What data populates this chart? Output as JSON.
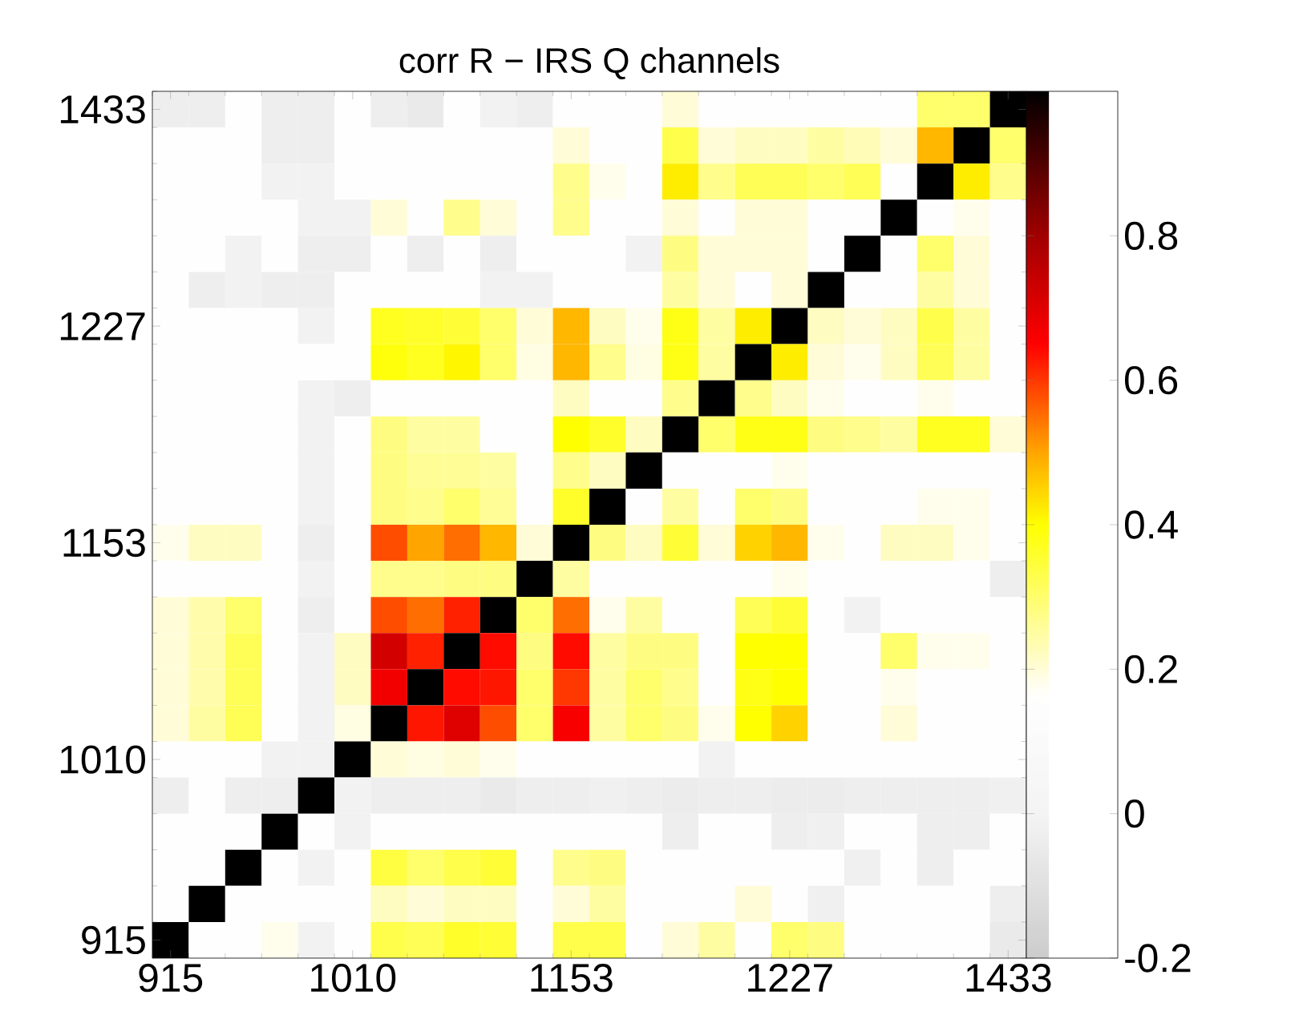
{
  "chart_data": {
    "type": "heatmap",
    "title": "corr R − IRS Q channels",
    "categories": [
      "915",
      null,
      null,
      null,
      null,
      "1010",
      null,
      null,
      null,
      null,
      null,
      "1153",
      null,
      null,
      null,
      null,
      null,
      "1227",
      null,
      null,
      null,
      null,
      null,
      "1433"
    ],
    "y_categories": [
      "1433",
      null,
      null,
      null,
      null,
      null,
      "1227",
      null,
      null,
      null,
      null,
      null,
      "1153",
      null,
      null,
      null,
      null,
      null,
      "1010",
      null,
      null,
      null,
      null,
      "915"
    ],
    "clim": [
      -0.2,
      1
    ],
    "cticks": [
      -0.2,
      0,
      0.2,
      0.4,
      0.6,
      0.8
    ],
    "cells": [
      [
        -0.03,
        -0.03,
        0.15,
        -0.03,
        -0.03,
        0.15,
        -0.03,
        -0.05,
        0.15,
        -0.01,
        -0.03,
        0.15,
        0.15,
        0.15,
        0.2,
        0.15,
        0.15,
        0.15,
        0.15,
        0.15,
        0.15,
        0.3,
        0.3,
        1
      ],
      [
        0.15,
        0.15,
        0.15,
        -0.03,
        -0.03,
        0.15,
        0.15,
        0.15,
        0.15,
        0.15,
        0.15,
        0.2,
        0.15,
        0.15,
        0.33,
        0.2,
        0.22,
        0.22,
        0.25,
        0.23,
        0.2,
        0.48,
        1,
        0.3
      ],
      [
        0.15,
        0.15,
        0.15,
        -0.01,
        -0.01,
        0.15,
        0.15,
        0.15,
        0.15,
        0.15,
        0.15,
        0.27,
        0.18,
        0.15,
        0.42,
        0.27,
        0.32,
        0.32,
        0.3,
        0.32,
        0.15,
        1,
        0.42,
        0.27
      ],
      [
        0.15,
        0.15,
        0.15,
        0.15,
        -0.01,
        -0.01,
        0.2,
        0.15,
        0.27,
        0.2,
        0.15,
        0.27,
        0.15,
        0.15,
        0.2,
        0.15,
        0.2,
        0.2,
        0.15,
        0.15,
        1,
        0.15,
        0.18,
        0.15
      ],
      [
        0.15,
        0.15,
        -0.01,
        0.15,
        -0.03,
        -0.03,
        0.15,
        -0.03,
        0.15,
        -0.03,
        0.15,
        0.15,
        0.15,
        -0.01,
        0.28,
        0.2,
        0.2,
        0.2,
        0.15,
        1,
        0.15,
        0.3,
        0.2,
        0.15
      ],
      [
        0.15,
        -0.03,
        -0.01,
        -0.03,
        -0.03,
        0.15,
        0.15,
        0.15,
        0.15,
        -0.01,
        -0.01,
        0.15,
        0.15,
        0.15,
        0.25,
        0.2,
        0.15,
        0.2,
        1,
        0.15,
        0.15,
        0.25,
        0.2,
        0.15
      ],
      [
        0.15,
        0.15,
        0.15,
        0.15,
        -0.01,
        0.15,
        0.37,
        0.36,
        0.35,
        0.3,
        0.2,
        0.48,
        0.22,
        0.18,
        0.38,
        0.25,
        0.42,
        1,
        0.22,
        0.2,
        0.22,
        0.33,
        0.25,
        0.15
      ],
      [
        0.15,
        0.15,
        0.15,
        0.15,
        0.15,
        0.15,
        0.39,
        0.37,
        0.41,
        0.3,
        0.19,
        0.48,
        0.27,
        0.19,
        0.38,
        0.25,
        1,
        0.42,
        0.2,
        0.18,
        0.22,
        0.32,
        0.25,
        0.15
      ],
      [
        0.15,
        0.15,
        0.15,
        0.15,
        -0.01,
        -0.03,
        0.15,
        0.15,
        0.15,
        0.15,
        0.15,
        0.22,
        0.15,
        0.15,
        0.27,
        1,
        0.27,
        0.22,
        0.18,
        0.15,
        0.15,
        0.18,
        0.15,
        0.15
      ],
      [
        0.15,
        0.15,
        0.15,
        0.15,
        -0.01,
        0.15,
        0.28,
        0.25,
        0.25,
        0.15,
        0.15,
        0.4,
        0.36,
        0.22,
        1,
        0.3,
        0.38,
        0.38,
        0.28,
        0.27,
        0.25,
        0.37,
        0.37,
        0.2
      ],
      [
        0.15,
        0.15,
        0.15,
        0.15,
        -0.01,
        0.15,
        0.28,
        0.26,
        0.26,
        0.25,
        0.15,
        0.27,
        0.22,
        1,
        0.15,
        0.15,
        0.15,
        0.18,
        0.15,
        0.15,
        0.15,
        0.15,
        0.15,
        0.15
      ],
      [
        0.15,
        0.15,
        0.15,
        0.15,
        -0.01,
        0.15,
        0.28,
        0.27,
        0.3,
        0.26,
        0.15,
        0.36,
        1,
        0.15,
        0.25,
        0.15,
        0.3,
        0.28,
        0.15,
        0.15,
        0.15,
        0.18,
        0.18,
        0.15
      ],
      [
        0.18,
        0.22,
        0.22,
        0.15,
        -0.03,
        0.15,
        0.58,
        0.5,
        0.55,
        0.48,
        0.2,
        1,
        0.28,
        0.22,
        0.35,
        0.2,
        0.45,
        0.48,
        0.18,
        0.15,
        0.22,
        0.22,
        0.18,
        0.15
      ],
      [
        0.15,
        0.15,
        0.15,
        0.15,
        -0.01,
        0.15,
        0.27,
        0.27,
        0.28,
        0.28,
        1,
        0.25,
        0.15,
        0.15,
        0.15,
        0.15,
        0.15,
        0.18,
        0.15,
        0.15,
        0.15,
        0.15,
        0.15,
        -0.03
      ],
      [
        0.2,
        0.24,
        0.3,
        0.15,
        -0.03,
        0.15,
        0.58,
        0.55,
        0.62,
        1,
        0.3,
        0.55,
        0.18,
        0.25,
        0.15,
        0.15,
        0.32,
        0.35,
        0.15,
        -0.01,
        0.15,
        0.15,
        0.15,
        0.15
      ],
      [
        0.2,
        0.24,
        0.32,
        0.15,
        -0.01,
        0.22,
        0.72,
        0.62,
        1,
        0.64,
        0.28,
        0.64,
        0.25,
        0.28,
        0.28,
        0.15,
        0.4,
        0.4,
        0.15,
        0.15,
        0.3,
        0.18,
        0.18,
        0.15
      ],
      [
        0.2,
        0.24,
        0.32,
        0.15,
        -0.01,
        0.22,
        0.67,
        1,
        0.64,
        0.63,
        0.3,
        0.6,
        0.25,
        0.3,
        0.27,
        0.15,
        0.38,
        0.4,
        0.15,
        0.15,
        0.18,
        0.15,
        0.15,
        0.15
      ],
      [
        0.2,
        0.25,
        0.32,
        0.15,
        -0.01,
        0.19,
        1,
        0.63,
        0.7,
        0.58,
        0.3,
        0.66,
        0.25,
        0.3,
        0.28,
        0.18,
        0.4,
        0.45,
        0.15,
        0.15,
        0.2,
        0.15,
        0.15,
        0.15
      ],
      [
        0.15,
        0.15,
        0.15,
        -0.01,
        -0.01,
        1,
        0.2,
        0.19,
        0.2,
        0.18,
        0.15,
        0.15,
        0.15,
        0.15,
        0.15,
        -0.01,
        0.15,
        0.15,
        0.15,
        0.15,
        0.15,
        0.15,
        0.15,
        0.15
      ],
      [
        -0.03,
        0.15,
        -0.03,
        -0.03,
        1,
        -0.01,
        -0.03,
        -0.03,
        -0.03,
        -0.05,
        -0.03,
        -0.03,
        -0.02,
        -0.03,
        -0.04,
        -0.03,
        -0.03,
        -0.04,
        -0.04,
        -0.03,
        -0.03,
        -0.03,
        -0.03,
        -0.02
      ],
      [
        0.15,
        0.15,
        0.15,
        1,
        0.15,
        -0.01,
        0.15,
        0.15,
        0.15,
        0.15,
        0.15,
        0.15,
        0.15,
        0.15,
        -0.03,
        0.15,
        0.15,
        -0.03,
        -0.02,
        0.15,
        0.15,
        -0.03,
        -0.03,
        0.15
      ],
      [
        0.15,
        0.15,
        1,
        0.15,
        -0.01,
        0.15,
        0.34,
        0.3,
        0.33,
        0.35,
        0.15,
        0.27,
        0.28,
        0.15,
        0.15,
        0.15,
        0.15,
        0.15,
        0.15,
        -0.02,
        0.15,
        -0.03,
        0.15,
        0.15
      ],
      [
        0.15,
        1,
        0.15,
        0.15,
        0.15,
        0.15,
        0.22,
        0.2,
        0.22,
        0.22,
        0.15,
        0.2,
        0.25,
        0.15,
        0.15,
        0.15,
        0.2,
        0.15,
        -0.02,
        0.15,
        0.15,
        0.15,
        0.15,
        -0.03
      ],
      [
        1,
        0.15,
        0.15,
        0.18,
        -0.01,
        0.15,
        0.33,
        0.32,
        0.36,
        0.35,
        0.15,
        0.33,
        0.33,
        0.15,
        0.2,
        0.25,
        0.15,
        0.3,
        0.28,
        0.15,
        0.15,
        0.15,
        0.15,
        -0.05
      ]
    ]
  }
}
